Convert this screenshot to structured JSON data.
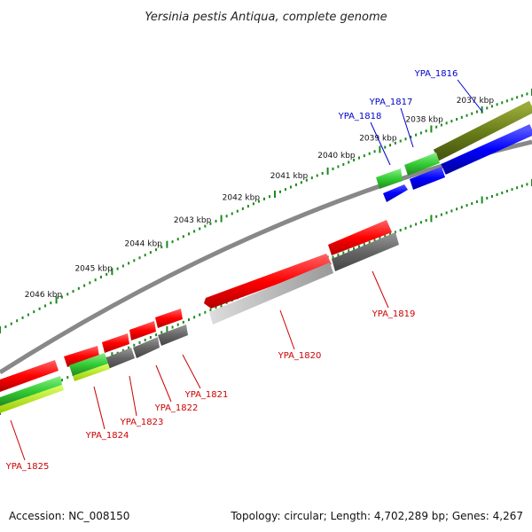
{
  "header": {
    "title": "Yersinia pestis Antiqua, complete genome"
  },
  "footer": {
    "accession": "Accession: NC_008150",
    "topology": "Topology: circular; Length: 4,702,289 bp; Genes: 4,267"
  },
  "scale": {
    "unit": "kbp",
    "ticks": [
      {
        "label": "2037 kbp"
      },
      {
        "label": "2038 kbp"
      },
      {
        "label": "2039 kbp"
      },
      {
        "label": "2040 kbp"
      },
      {
        "label": "2041 kbp"
      },
      {
        "label": "2042 kbp"
      },
      {
        "label": "2043 kbp"
      },
      {
        "label": "2044 kbp"
      },
      {
        "label": "2045 kbp"
      },
      {
        "label": "2046 kbp"
      }
    ]
  },
  "genes": [
    {
      "name": "YPA_1816",
      "color": "#0000cc"
    },
    {
      "name": "YPA_1817",
      "color": "#0000cc"
    },
    {
      "name": "YPA_1818",
      "color": "#0000cc"
    },
    {
      "name": "YPA_1819",
      "color": "#cc0000"
    },
    {
      "name": "YPA_1820",
      "color": "#cc0000"
    },
    {
      "name": "YPA_1821",
      "color": "#cc0000"
    },
    {
      "name": "YPA_1822",
      "color": "#cc0000"
    },
    {
      "name": "YPA_1823",
      "color": "#cc0000"
    },
    {
      "name": "YPA_1824",
      "color": "#cc0000"
    },
    {
      "name": "YPA_1825",
      "color": "#cc0000"
    }
  ],
  "colors": {
    "forward_cds": "#ff0000",
    "reverse_cds": "#0000ff",
    "gene_feature": "#33cc33",
    "gc_skew": "#6b7f1a",
    "backbone": "#888888",
    "scale_dots": "#1a8a1a"
  }
}
